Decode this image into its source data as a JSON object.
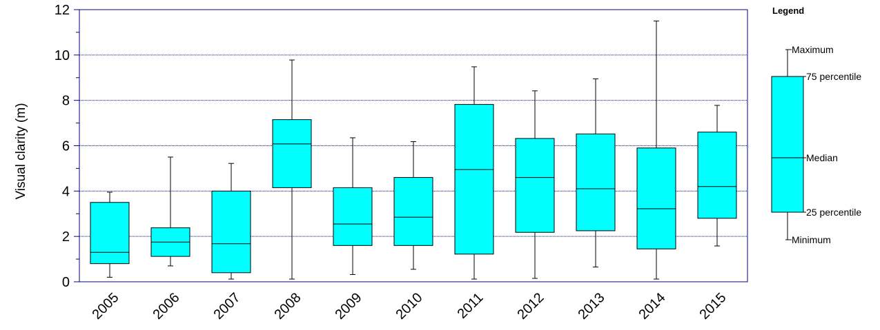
{
  "chart_data": {
    "type": "boxplot",
    "ylabel": "Visual clarity (m)",
    "ylim": [
      0,
      12
    ],
    "yticks": [
      0,
      2,
      4,
      6,
      8,
      10,
      12
    ],
    "grid": "horizontal-dotted",
    "categories": [
      "2005",
      "2006",
      "2007",
      "2008",
      "2009",
      "2010",
      "2011",
      "2012",
      "2013",
      "2014",
      "2015"
    ],
    "boxes": [
      {
        "year": "2005",
        "min": 0.2,
        "q1": 0.8,
        "median": 1.3,
        "q3": 3.5,
        "max": 3.95
      },
      {
        "year": "2006",
        "min": 0.7,
        "q1": 1.12,
        "median": 1.75,
        "q3": 2.38,
        "max": 5.5
      },
      {
        "year": "2007",
        "min": 0.12,
        "q1": 0.4,
        "median": 1.68,
        "q3": 4.0,
        "max": 5.22
      },
      {
        "year": "2008",
        "min": 0.12,
        "q1": 4.15,
        "median": 6.08,
        "q3": 7.15,
        "max": 9.78
      },
      {
        "year": "2009",
        "min": 0.32,
        "q1": 1.6,
        "median": 2.55,
        "q3": 4.15,
        "max": 6.35
      },
      {
        "year": "2010",
        "min": 0.55,
        "q1": 1.6,
        "median": 2.85,
        "q3": 4.6,
        "max": 6.18
      },
      {
        "year": "2011",
        "min": 0.12,
        "q1": 1.22,
        "median": 4.95,
        "q3": 7.82,
        "max": 9.48
      },
      {
        "year": "2012",
        "min": 0.15,
        "q1": 2.18,
        "median": 4.6,
        "q3": 6.32,
        "max": 8.42
      },
      {
        "year": "2013",
        "min": 0.65,
        "q1": 2.25,
        "median": 4.1,
        "q3": 6.52,
        "max": 8.95
      },
      {
        "year": "2014",
        "min": 0.12,
        "q1": 1.45,
        "median": 3.22,
        "q3": 5.9,
        "max": 11.5
      },
      {
        "year": "2015",
        "min": 1.58,
        "q1": 2.8,
        "median": 4.2,
        "q3": 6.6,
        "max": 7.78
      }
    ],
    "box_color": "#00ffff",
    "legend": {
      "title": "Legend",
      "placement": "right",
      "maximum": "Maximum",
      "p75": "75 percentile",
      "median": "Median",
      "p25": "25 percentile",
      "minimum": "Minimum"
    }
  }
}
